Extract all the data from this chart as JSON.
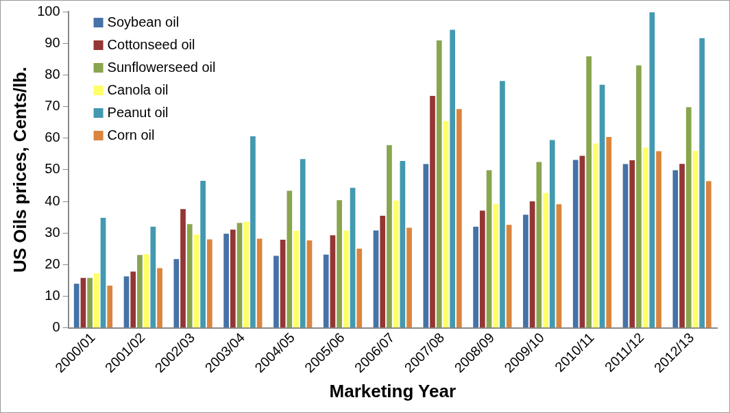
{
  "chart_data": {
    "type": "bar",
    "xlabel": "Marketing Year",
    "ylabel": "US Oils prices, Cents/lb.",
    "categories": [
      "2000/01",
      "2001/02",
      "2002/03",
      "2003/04",
      "2004/05",
      "2005/06",
      "2006/07",
      "2007/08",
      "2008/09",
      "2009/10",
      "2010/11",
      "2011/12",
      "2012/13"
    ],
    "series": [
      {
        "name": "Soybean oil",
        "color": "#4572a7",
        "values": [
          14.2,
          16.5,
          22,
          30,
          23,
          23.4,
          31,
          52,
          32.2,
          36,
          53.3,
          52,
          50.1
        ]
      },
      {
        "name": "Cottonseed oil",
        "color": "#943634",
        "values": [
          16,
          18,
          37.8,
          31.3,
          28.1,
          29.5,
          35.7,
          73.6,
          37.3,
          40.2,
          54.6,
          53.2,
          52.1
        ]
      },
      {
        "name": "Sunflowerseed oil",
        "color": "#89a54e",
        "values": [
          16,
          23.3,
          33,
          33.4,
          43.6,
          40.6,
          58,
          91.1,
          50.1,
          52.7,
          86.1,
          83.2,
          70
        ]
      },
      {
        "name": "Canola oil",
        "color": "#ffff66",
        "values": [
          17.5,
          23.5,
          29.7,
          33.7,
          30.9,
          31,
          40.5,
          65.6,
          39.4,
          42.9,
          58.5,
          57.2,
          56.2
        ]
      },
      {
        "name": "Peanut oil",
        "color": "#4299b0",
        "values": [
          35,
          32.2,
          46.7,
          60.8,
          53.6,
          44.5,
          53,
          94.5,
          78.3,
          59.6,
          77.1,
          100,
          91.8
        ]
      },
      {
        "name": "Corn oil",
        "color": "#db843d",
        "values": [
          13.6,
          19.1,
          28.2,
          28.4,
          27.9,
          25.3,
          31.9,
          69.4,
          32.8,
          39.3,
          60.6,
          56.1,
          46.6
        ]
      }
    ],
    "ylim": [
      0,
      100
    ],
    "yticks": [
      0,
      10,
      20,
      30,
      40,
      50,
      60,
      70,
      80,
      90,
      100
    ],
    "grid": false,
    "legend": "top left"
  }
}
